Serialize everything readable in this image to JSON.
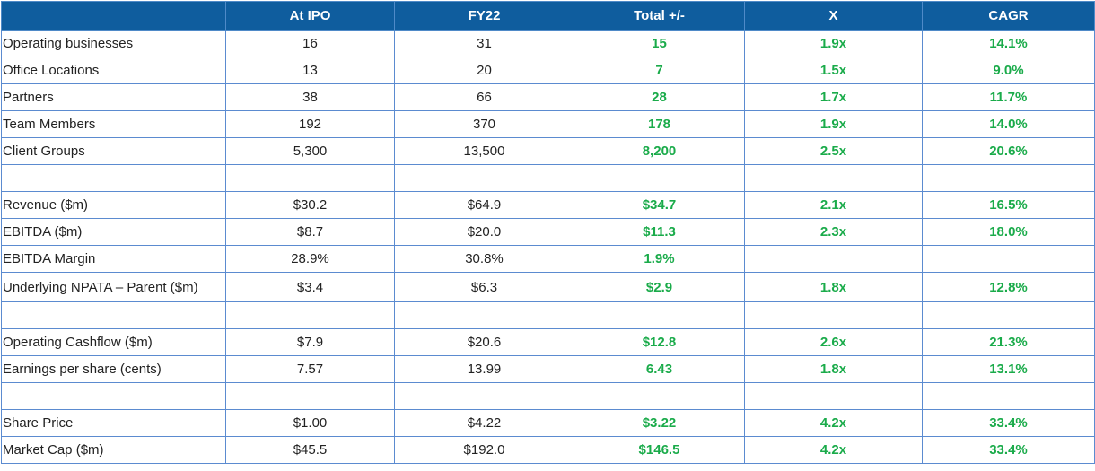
{
  "table": {
    "headers": [
      "",
      "At IPO",
      "FY22",
      "Total +/-",
      "X",
      "CAGR"
    ],
    "rows": [
      {
        "label": "Operating businesses",
        "ipo": "16",
        "fy22": "31",
        "total": "15",
        "x": "1.9x",
        "cagr": "14.1%"
      },
      {
        "label": "Office Locations",
        "ipo": "13",
        "fy22": "20",
        "total": "7",
        "x": "1.5x",
        "cagr": "9.0%"
      },
      {
        "label": "Partners",
        "ipo": "38",
        "fy22": "66",
        "total": "28",
        "x": "1.7x",
        "cagr": "11.7%"
      },
      {
        "label": "Team Members",
        "ipo": "192",
        "fy22": "370",
        "total": "178",
        "x": "1.9x",
        "cagr": "14.0%"
      },
      {
        "label": "Client Groups",
        "ipo": "5,300",
        "fy22": "13,500",
        "total": "8,200",
        "x": "2.5x",
        "cagr": "20.6%"
      },
      {
        "label": "",
        "ipo": "",
        "fy22": "",
        "total": "",
        "x": "",
        "cagr": ""
      },
      {
        "label": "Revenue ($m)",
        "ipo": "$30.2",
        "fy22": "$64.9",
        "total": "$34.7",
        "x": "2.1x",
        "cagr": "16.5%"
      },
      {
        "label": "EBITDA ($m)",
        "ipo": "$8.7",
        "fy22": "$20.0",
        "total": "$11.3",
        "x": "2.3x",
        "cagr": "18.0%"
      },
      {
        "label": "EBITDA Margin",
        "ipo": "28.9%",
        "fy22": "30.8%",
        "total": "1.9%",
        "x": "",
        "cagr": ""
      },
      {
        "label": "Underlying NPATA – Parent ($m)",
        "ipo": "$3.4",
        "fy22": "$6.3",
        "total": "$2.9",
        "x": "1.8x",
        "cagr": "12.8%"
      },
      {
        "label": "",
        "ipo": "",
        "fy22": "",
        "total": "",
        "x": "",
        "cagr": ""
      },
      {
        "label": "Operating Cashflow ($m)",
        "ipo": "$7.9",
        "fy22": "$20.6",
        "total": "$12.8",
        "x": "2.6x",
        "cagr": "21.3%"
      },
      {
        "label": "Earnings per share (cents)",
        "ipo": "7.57",
        "fy22": "13.99",
        "total": "6.43",
        "x": "1.8x",
        "cagr": "13.1%"
      },
      {
        "label": "",
        "ipo": "",
        "fy22": "",
        "total": "",
        "x": "",
        "cagr": ""
      },
      {
        "label": "Share Price",
        "ipo": "$1.00",
        "fy22": "$4.22",
        "total": "$3.22",
        "x": "4.2x",
        "cagr": "33.4%"
      },
      {
        "label": "Market Cap ($m)",
        "ipo": "$45.5",
        "fy22": "$192.0",
        "total": "$146.5",
        "x": "4.2x",
        "cagr": "33.4%"
      }
    ]
  },
  "colors": {
    "header_bg": "#0f5d9e",
    "header_text": "#ffffff",
    "border": "#5b8bd0",
    "positive": "#1aab4a"
  }
}
